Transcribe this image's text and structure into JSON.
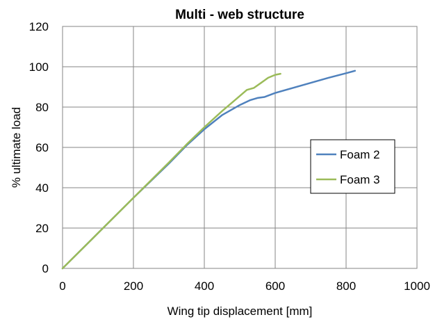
{
  "chart_data": {
    "type": "line",
    "title": "Multi - web structure",
    "xlabel": "Wing tip displacement  [mm]",
    "ylabel": "% ultimate load",
    "xlim": [
      0,
      1000
    ],
    "ylim": [
      0,
      120
    ],
    "xticks": [
      0,
      200,
      400,
      600,
      800,
      1000
    ],
    "yticks": [
      0,
      20,
      40,
      60,
      80,
      100,
      120
    ],
    "xtick_labels": [
      "0",
      "200",
      "400",
      "600",
      "800",
      "1000"
    ],
    "ytick_labels": [
      "0",
      "20",
      "40",
      "60",
      "80",
      "100",
      "120"
    ],
    "grid": true,
    "legend_position": "right-middle",
    "series": [
      {
        "name": "Foam 2",
        "color": "#4f81bd",
        "x": [
          0,
          100,
          200,
          300,
          350,
          400,
          450,
          500,
          530,
          550,
          570,
          600,
          650,
          700,
          750,
          800,
          825
        ],
        "y": [
          0,
          17.5,
          35,
          52,
          61,
          69,
          76,
          81,
          83.5,
          84.5,
          85,
          87,
          89.5,
          92,
          94.5,
          96.8,
          98
        ]
      },
      {
        "name": "Foam 3",
        "color": "#9bbb59",
        "x": [
          0,
          100,
          200,
          300,
          350,
          400,
          450,
          490,
          520,
          540,
          560,
          580,
          600,
          615
        ],
        "y": [
          0,
          17.5,
          35,
          52.5,
          61.5,
          70,
          78,
          84,
          88.5,
          89.5,
          92,
          94.5,
          96,
          96.5
        ]
      }
    ]
  }
}
